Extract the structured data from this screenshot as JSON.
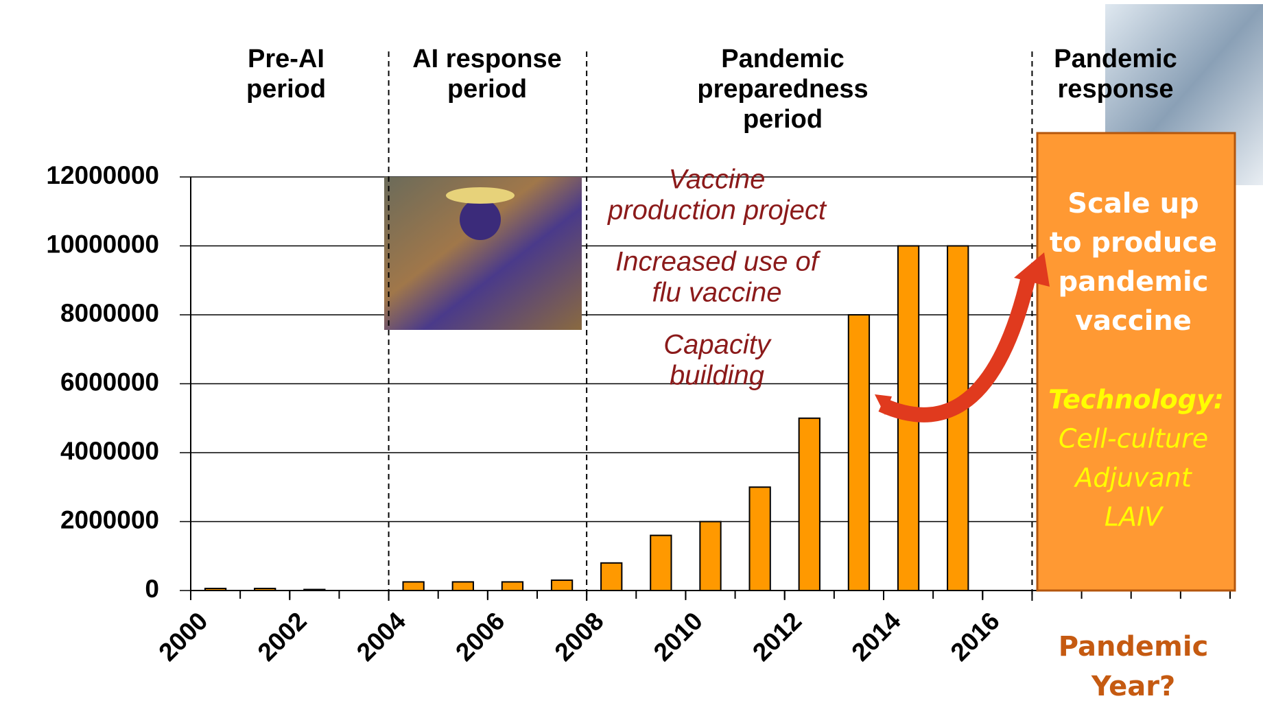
{
  "chart_data": {
    "type": "bar",
    "x": [
      2000,
      2001,
      2002,
      2003,
      2004,
      2005,
      2006,
      2007,
      2008,
      2009,
      2010,
      2011,
      2012,
      2013,
      2014,
      2015
    ],
    "values": [
      60000,
      60000,
      30000,
      0,
      250000,
      250000,
      250000,
      300000,
      800000,
      1600000,
      2000000,
      3000000,
      5000000,
      8000000,
      10000000,
      10000000
    ],
    "color": "#ff9900",
    "xlim": [
      2000,
      2021
    ],
    "xticks": [
      2000,
      2002,
      2004,
      2006,
      2008,
      2010,
      2012,
      2014,
      2016
    ],
    "ylim": [
      0,
      12000000
    ],
    "yticks": [
      0,
      2000000,
      4000000,
      6000000,
      8000000,
      10000000,
      12000000
    ],
    "grid": true,
    "period_boundaries": [
      2004,
      2008,
      2017
    ],
    "period_labels": [
      [
        "Pre-AI",
        "period"
      ],
      [
        "AI response",
        "period"
      ],
      [
        "Pandemic",
        "preparedness",
        "period"
      ],
      [
        "Pandemic",
        "response"
      ]
    ],
    "annotations": [
      [
        "Vaccine",
        "production project"
      ],
      [
        "Increased use of",
        "flu vaccine"
      ],
      [
        "Capacity",
        "building"
      ]
    ],
    "box_text": [
      "Scale up",
      "to produce",
      "pandemic",
      "vaccine"
    ],
    "technology_title": "Technology:",
    "technologies": [
      "Cell-culture",
      "Adjuvant",
      "LAIV"
    ],
    "pandemic_year": [
      "Pandemic",
      "Year?"
    ]
  }
}
